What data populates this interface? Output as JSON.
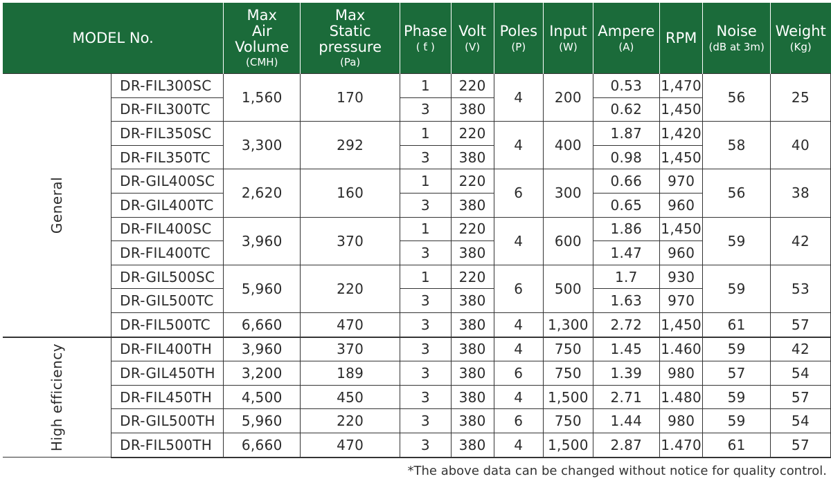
{
  "header": {
    "model": "MODEL No.",
    "air_volume": "Max\nAir Volume",
    "air_volume_unit": "(CMH)",
    "static_pressure": "Max\nStatic pressure",
    "static_pressure_unit": "(Pa)",
    "phase": "Phase",
    "phase_unit": "( ƭ )",
    "volt": "Volt",
    "volt_unit": "(V)",
    "poles": "Poles",
    "poles_unit": "(P)",
    "input": "Input",
    "input_unit": "(W)",
    "ampere": "Ampere",
    "ampere_unit": "(A)",
    "rpm": "RPM",
    "noise": "Noise",
    "noise_unit": "(dB at 3m)",
    "weight": "Weight",
    "weight_unit": "(Kg)"
  },
  "groups": {
    "general": "General",
    "high_efficiency": "High efficiency"
  },
  "general": [
    {
      "models": [
        "DR-FIL300SC",
        "DR-FIL300TC"
      ],
      "air": "1,560",
      "pressure": "170",
      "phase": [
        "1",
        "3"
      ],
      "volt": [
        "220",
        "380"
      ],
      "poles": "4",
      "input": "200",
      "ampere": [
        "0.53",
        "0.62"
      ],
      "rpm": [
        "1,470",
        "1,450"
      ],
      "noise": "56",
      "weight": "25"
    },
    {
      "models": [
        "DR-FIL350SC",
        "DR-FIL350TC"
      ],
      "air": "3,300",
      "pressure": "292",
      "phase": [
        "1",
        "3"
      ],
      "volt": [
        "220",
        "380"
      ],
      "poles": "4",
      "input": "400",
      "ampere": [
        "1.87",
        "0.98"
      ],
      "rpm": [
        "1,420",
        "1,450"
      ],
      "noise": "58",
      "weight": "40"
    },
    {
      "models": [
        "DR-GIL400SC",
        "DR-GIL400TC"
      ],
      "air": "2,620",
      "pressure": "160",
      "phase": [
        "1",
        "3"
      ],
      "volt": [
        "220",
        "380"
      ],
      "poles": "6",
      "input": "300",
      "ampere": [
        "0.66",
        "0.65"
      ],
      "rpm": [
        "970",
        "960"
      ],
      "noise": "56",
      "weight": "38"
    },
    {
      "models": [
        "DR-FIL400SC",
        "DR-FIL400TC"
      ],
      "air": "3,960",
      "pressure": "370",
      "phase": [
        "1",
        "3"
      ],
      "volt": [
        "220",
        "380"
      ],
      "poles": "4",
      "input": "600",
      "ampere": [
        "1.86",
        "1.47"
      ],
      "rpm": [
        "1,450",
        "960"
      ],
      "noise": "59",
      "weight": "42"
    },
    {
      "models": [
        "DR-GIL500SC",
        "DR-GIL500TC"
      ],
      "air": "5,960",
      "pressure": "220",
      "phase": [
        "1",
        "3"
      ],
      "volt": [
        "220",
        "380"
      ],
      "poles": "6",
      "input": "500",
      "ampere": [
        "1.7",
        "1.63"
      ],
      "rpm": [
        "930",
        "970"
      ],
      "noise": "59",
      "weight": "53"
    }
  ],
  "general_single": {
    "model": "DR-FIL500TC",
    "air": "6,660",
    "pressure": "470",
    "phase": "3",
    "volt": "380",
    "poles": "4",
    "input": "1,300",
    "ampere": "2.72",
    "rpm": "1,450",
    "noise": "61",
    "weight": "57"
  },
  "high_efficiency": [
    {
      "model": "DR-FIL400TH",
      "air": "3,960",
      "pressure": "370",
      "phase": "3",
      "volt": "380",
      "poles": "4",
      "input": "750",
      "ampere": "1.45",
      "rpm": "1.460",
      "noise": "59",
      "weight": "42"
    },
    {
      "model": "DR-GIL450TH",
      "air": "3,200",
      "pressure": "189",
      "phase": "3",
      "volt": "380",
      "poles": "6",
      "input": "750",
      "ampere": "1.39",
      "rpm": "980",
      "noise": "57",
      "weight": "54"
    },
    {
      "model": "DR-FIL450TH",
      "air": "4,500",
      "pressure": "450",
      "phase": "3",
      "volt": "380",
      "poles": "4",
      "input": "1,500",
      "ampere": "2.71",
      "rpm": "1.480",
      "noise": "59",
      "weight": "57"
    },
    {
      "model": "DR-GIL500TH",
      "air": "5,960",
      "pressure": "220",
      "phase": "3",
      "volt": "380",
      "poles": "6",
      "input": "750",
      "ampere": "1.44",
      "rpm": "980",
      "noise": "59",
      "weight": "54"
    },
    {
      "model": "DR-FIL500TH",
      "air": "6,660",
      "pressure": "470",
      "phase": "3",
      "volt": "380",
      "poles": "4",
      "input": "1,500",
      "ampere": "2.87",
      "rpm": "1.470",
      "noise": "61",
      "weight": "57"
    }
  ],
  "footnote": "*The above data can be changed without notice for quality control.",
  "colors": {
    "header_bg": "#1b6b3a",
    "header_text": "#ffffff",
    "border": "#333333"
  }
}
